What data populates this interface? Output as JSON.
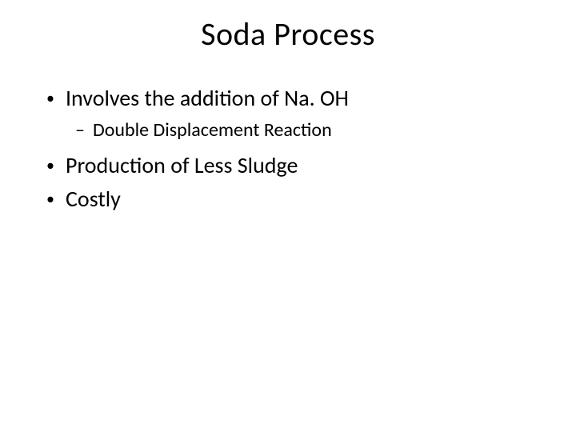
{
  "slide": {
    "title": "Soda Process",
    "bullets": [
      {
        "level": 1,
        "text": "Involves the addition of Na. OH"
      },
      {
        "level": 2,
        "text": "Double Displacement Reaction"
      },
      {
        "level": 1,
        "text": "Production of Less Sludge"
      },
      {
        "level": 1,
        "text": "Costly"
      }
    ]
  },
  "style": {
    "background_color": "#ffffff",
    "text_color": "#000000",
    "title_fontsize": 40,
    "bullet_l1_fontsize": 28,
    "bullet_l2_fontsize": 24,
    "font_family": "Calibri",
    "bullet_l1_marker": "•",
    "bullet_l2_marker": "–"
  }
}
